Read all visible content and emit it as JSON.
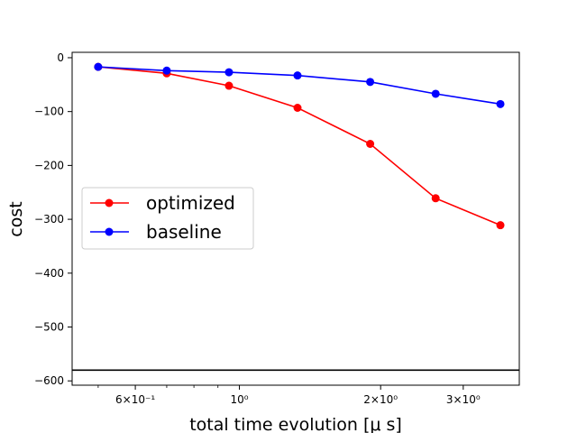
{
  "chart_data": {
    "type": "line",
    "xlabel": "total time evolution [μ s]",
    "ylabel": "cost",
    "x_scale": "log",
    "xlim": [
      0.44,
      3.95
    ],
    "ylim": [
      -608,
      10
    ],
    "x": [
      0.5,
      0.7,
      0.95,
      1.33,
      1.9,
      2.62,
      3.6
    ],
    "x_ticks": [
      {
        "value": 0.6,
        "label": "6×10⁻¹"
      },
      {
        "value": 1.0,
        "label": "10⁰"
      },
      {
        "value": 2.0,
        "label": "2×10⁰"
      },
      {
        "value": 3.0,
        "label": "3×10⁰"
      }
    ],
    "x_minor_ticks": [
      0.5,
      0.7,
      0.8,
      0.9
    ],
    "y_ticks": [
      0,
      -100,
      -200,
      -300,
      -400,
      -500,
      -600
    ],
    "y_tick_labels": [
      "0",
      "−100",
      "−200",
      "−300",
      "−400",
      "−500",
      "−600"
    ],
    "series": [
      {
        "name": "optimized",
        "color": "#ff0000",
        "values": [
          -17,
          -29,
          -52,
          -93,
          -160,
          -261,
          -311
        ]
      },
      {
        "name": "baseline",
        "color": "#0000ff",
        "values": [
          -17,
          -24,
          -27,
          -33,
          -45,
          -67,
          -86
        ]
      }
    ],
    "reference_line": {
      "y": -580,
      "color": "#000000"
    },
    "legend": {
      "placement": "center-left"
    },
    "grid": false
  }
}
